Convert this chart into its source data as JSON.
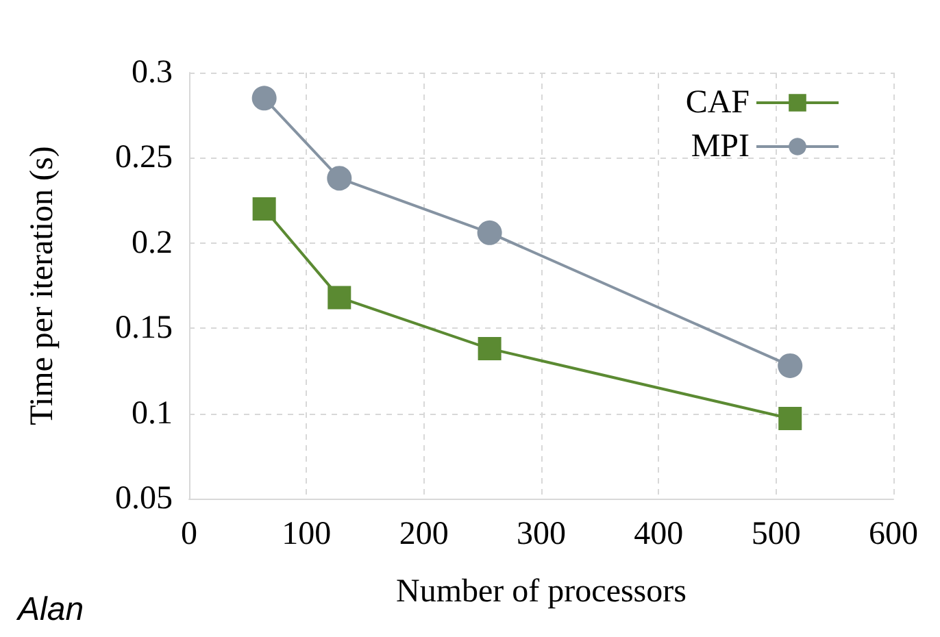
{
  "chart_data": {
    "type": "line",
    "xlabel": "Number of processors",
    "ylabel": "Time per iteration (s)",
    "xlim": [
      0,
      600
    ],
    "xticks": [
      0,
      100,
      200,
      300,
      400,
      500,
      600
    ],
    "ylim": [
      0.05,
      0.3
    ],
    "yticks": [
      0.05,
      0.1,
      0.15,
      0.2,
      0.25,
      0.3
    ],
    "grid": true,
    "legend": "top right",
    "annotations": [
      "Alan"
    ],
    "series": [
      {
        "name": "CAF",
        "color": "#5b8a32",
        "marker": "square",
        "x": [
          64,
          128,
          256,
          512
        ],
        "values": [
          0.22,
          0.168,
          0.138,
          0.097
        ]
      },
      {
        "name": "MPI",
        "color": "#8593a2",
        "marker": "circle",
        "x": [
          64,
          128,
          256,
          512
        ],
        "values": [
          0.285,
          0.238,
          0.206,
          0.128
        ]
      }
    ]
  }
}
